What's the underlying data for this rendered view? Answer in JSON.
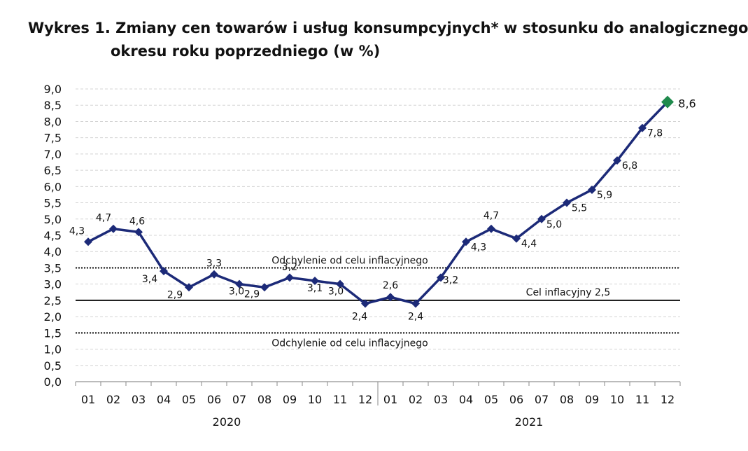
{
  "title_line1": "Wykres 1. Zmiany cen towarów i usług konsumpcyjnych* w stosunku do analogicznego",
  "title_line2": "okresu roku poprzedniego (w %)",
  "chart_data": {
    "type": "line",
    "title": "Wykres 1. Zmiany cen towarów i usług konsumpcyjnych* w stosunku do analogicznego okresu roku poprzedniego (w %)",
    "categories": [
      "01",
      "02",
      "03",
      "04",
      "05",
      "06",
      "07",
      "08",
      "09",
      "10",
      "11",
      "12",
      "01",
      "02",
      "03",
      "04",
      "05",
      "06",
      "07",
      "08",
      "09",
      "10",
      "11",
      "12"
    ],
    "year_groups": [
      {
        "label": "2020",
        "count": 12
      },
      {
        "label": "2021",
        "count": 12
      }
    ],
    "series": [
      {
        "values": [
          4.3,
          4.7,
          4.6,
          3.4,
          2.9,
          3.3,
          3.0,
          2.9,
          3.2,
          3.1,
          3.0,
          2.4,
          2.6,
          2.4,
          3.2,
          4.3,
          4.7,
          4.4,
          5.0,
          5.5,
          5.9,
          6.8,
          7.8,
          8.6
        ],
        "labels": [
          "4,3",
          "4,7",
          "4,6",
          "3,4",
          "2,9",
          "3,3",
          "3,0",
          "2,9",
          "3,2",
          "3,1",
          "3,0",
          "2,4",
          "2,6",
          "2,4",
          "3,2",
          "4,3",
          "4,7",
          "4,4",
          "5,0",
          "5,5",
          "5,9",
          "6,8",
          "7,8",
          "8,6"
        ],
        "color": "#1c2a78",
        "last_marker_color": "#1f8a4c"
      }
    ],
    "ylim": [
      0,
      9
    ],
    "yticks": [
      0,
      0.5,
      1,
      1.5,
      2,
      2.5,
      3,
      3.5,
      4,
      4.5,
      5,
      5.5,
      6,
      6.5,
      7,
      7.5,
      8,
      8.5,
      9
    ],
    "ytick_labels": [
      "0,0",
      "0,5",
      "1,0",
      "1,5",
      "2,0",
      "2,5",
      "3,0",
      "3,5",
      "4,0",
      "4,5",
      "5,0",
      "5,5",
      "6,0",
      "6,5",
      "7,0",
      "7,5",
      "8,0",
      "8,5",
      "9,0"
    ],
    "grid": true,
    "reference_lines": [
      {
        "value": 3.5,
        "style": "dotted",
        "label": "Odchylenie od celu inflacyjnego"
      },
      {
        "value": 2.5,
        "style": "solid",
        "label": "Cel inflacyjny 2,5"
      },
      {
        "value": 1.5,
        "style": "dotted",
        "label": "Odchylenie od celu inflacyjnego"
      }
    ]
  }
}
